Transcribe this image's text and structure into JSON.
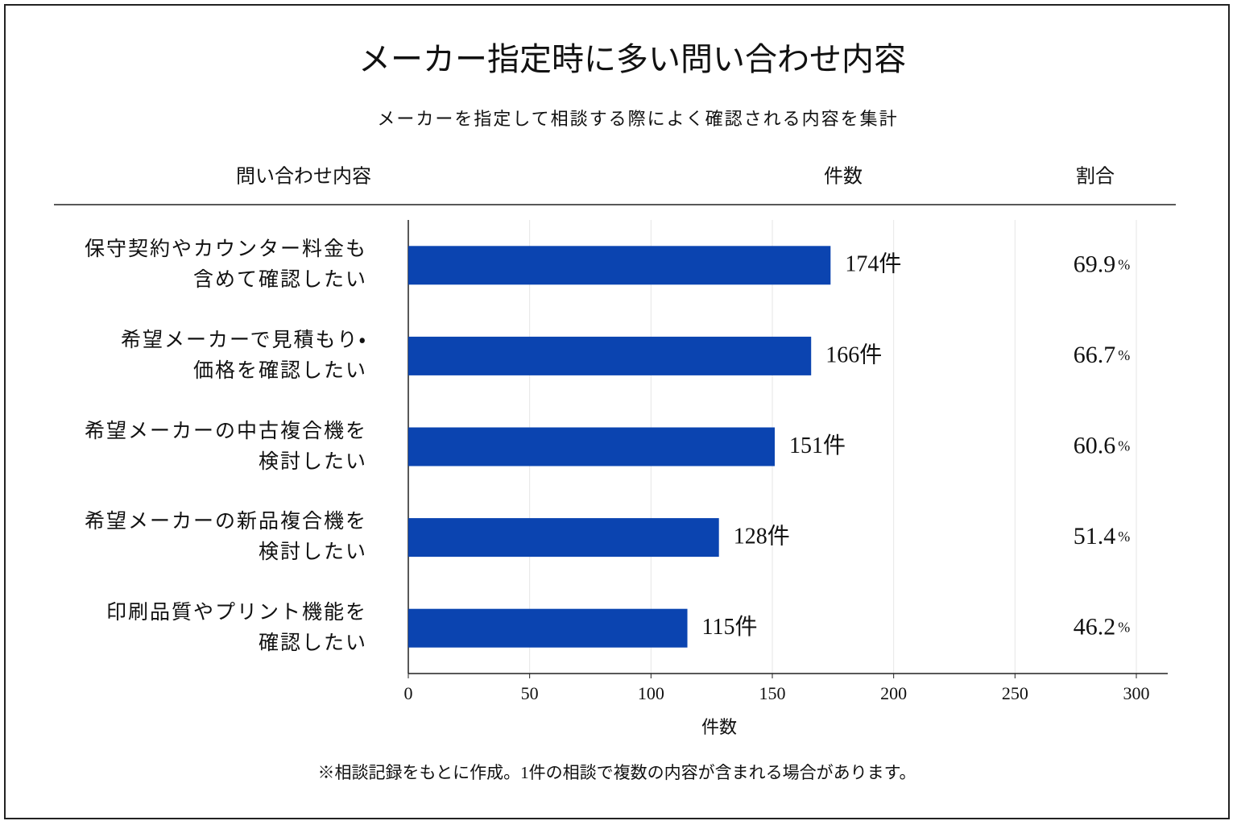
{
  "chart_data": {
    "type": "bar",
    "orientation": "horizontal",
    "title": "メーカー指定時に多い問い合わせ内容",
    "subtitle": "メーカーを指定して相談する際によく確認される内容を集計",
    "column_headers": [
      "問い合わせ内容",
      "件数",
      "割合"
    ],
    "categories": [
      "保守契約やカウンター料金も\n含めて確認したい",
      "希望メーカーで見積もり・\n価格を確認したい",
      "希望メーカーの中古複合機を\n検討したい",
      "希望メーカーの新品複合機を\n検討したい",
      "印刷品質やプリント機能を\n確認したい"
    ],
    "values": [
      174,
      166,
      151,
      128,
      115
    ],
    "value_labels": [
      "174件",
      "166件",
      "151件",
      "128件",
      "115件"
    ],
    "percent_values": [
      69.9,
      66.7,
      60.6,
      51.4,
      46.2
    ],
    "percent_unit": "%",
    "color": "#0b44b0",
    "xlim": [
      0,
      300
    ],
    "xticks": [
      0,
      50,
      100,
      150,
      200,
      250,
      300
    ],
    "xlabel": "件数",
    "grid": true,
    "footnote": "※相談記録をもとに作成。1件の相談で複数の内容が含まれる場合があります。"
  }
}
